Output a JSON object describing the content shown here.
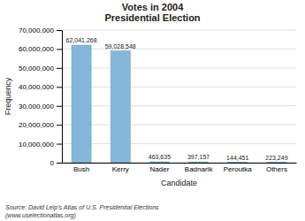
{
  "chart_data": {
    "type": "bar",
    "title": "Votes in 2004\nPresidential Election",
    "x_label": "Candidate",
    "y_label": "Frequency",
    "categories": [
      "Bush",
      "Kerry",
      "Nader",
      "Badnarik",
      "Peroutka",
      "Others"
    ],
    "values": [
      62041268,
      59028548,
      463635,
      397157,
      144451,
      223249
    ],
    "value_labels": [
      "62,041,268",
      "59,028,548",
      "463,635",
      "397,157",
      "144,451",
      "223,249"
    ],
    "data_labels": true,
    "color": "#85B8D8",
    "ylim": [
      0,
      70000000
    ],
    "yticks": [
      0,
      {
        "value": 10000000,
        "label": "10,000,000"
      },
      {
        "value": 20000000,
        "label": "20,000,000"
      },
      {
        "value": 30000000,
        "label": "30,000,000"
      },
      {
        "value": 40000000,
        "label": "40,000,000"
      },
      {
        "value": 50000000,
        "label": "50,000,000"
      },
      {
        "value": 60000000,
        "label": "60,000,000"
      },
      {
        "value": 70000000,
        "label": "70,000,000"
      }
    ],
    "grid": true,
    "annotations": [
      "Source: David Leip’s Atlas of U.S. Presidential Elections\n(www.uselectionatlas.org)"
    ]
  }
}
